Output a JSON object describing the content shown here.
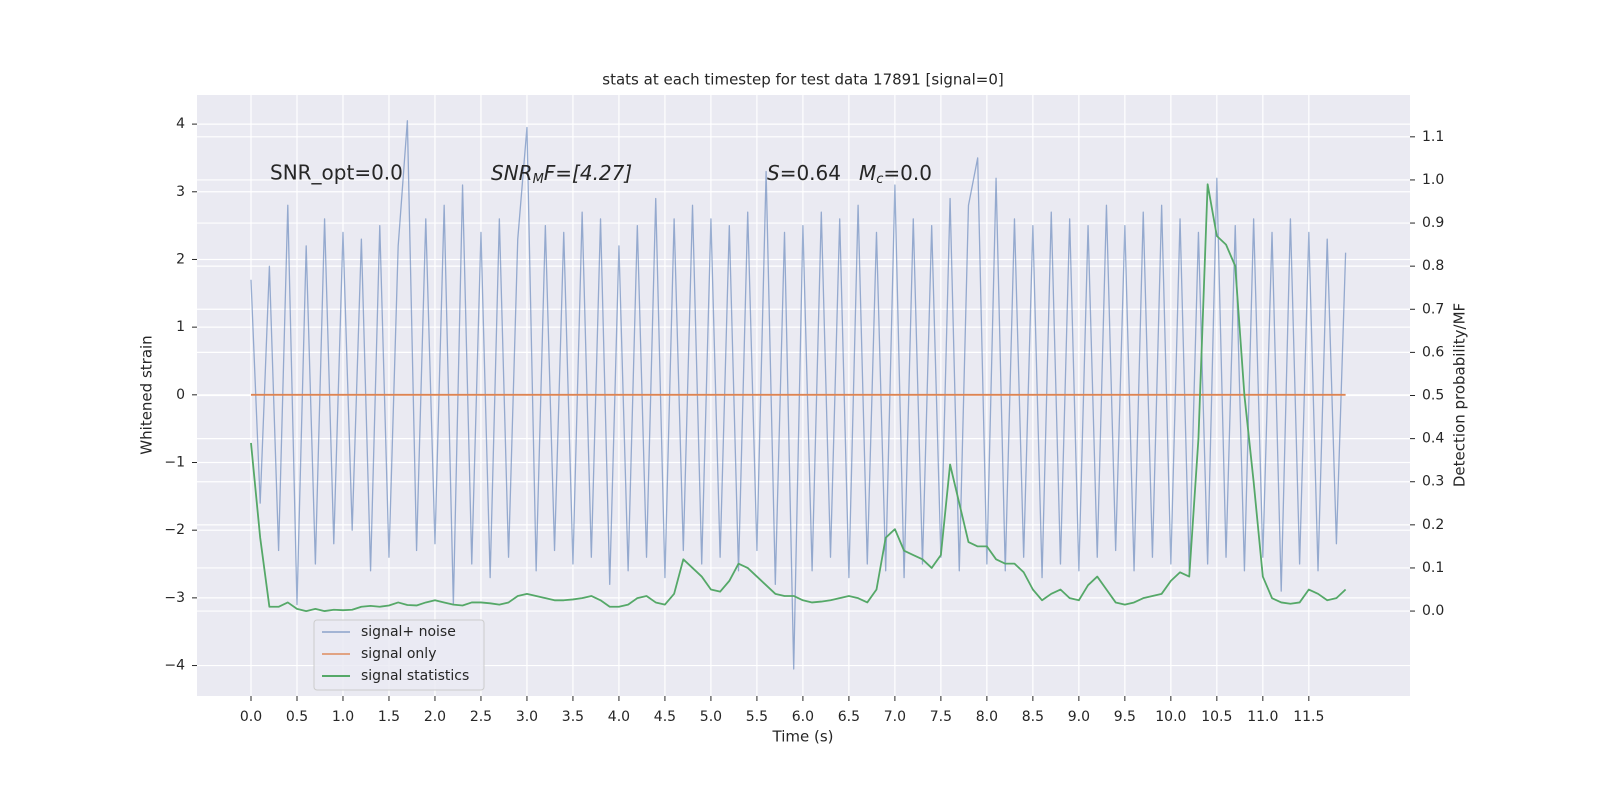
{
  "chart_data": {
    "type": "line",
    "title": "stats at each timestep for test data 17891 [signal=0]",
    "xlabel": "Time (s)",
    "ylabel": "Whitened strain",
    "y2label": "Detection probability/MF",
    "annotations": {
      "snr_opt": "SNR_opt=0.0",
      "snr_mf": [
        "SNR",
        "M",
        "F=[4.27]"
      ],
      "s": [
        "S",
        "=0.64"
      ],
      "mc": [
        "M",
        "c",
        "=0.0"
      ]
    },
    "x": [
      0,
      0.1,
      0.2,
      0.3,
      0.4,
      0.5,
      0.6,
      0.7,
      0.8,
      0.9,
      1,
      1.1,
      1.2,
      1.3,
      1.4,
      1.5,
      1.6,
      1.7,
      1.8,
      1.9,
      2,
      2.1,
      2.2,
      2.3,
      2.4,
      2.5,
      2.6,
      2.7,
      2.8,
      2.9,
      3,
      3.1,
      3.2,
      3.3,
      3.4,
      3.5,
      3.6,
      3.7,
      3.8,
      3.9,
      4,
      4.1,
      4.2,
      4.3,
      4.4,
      4.5,
      4.6,
      4.7,
      4.8,
      4.9,
      5,
      5.1,
      5.2,
      5.3,
      5.4,
      5.5,
      5.6,
      5.7,
      5.8,
      5.9,
      6,
      6.1,
      6.2,
      6.3,
      6.4,
      6.5,
      6.6,
      6.7,
      6.8,
      6.9,
      7,
      7.1,
      7.2,
      7.3,
      7.4,
      7.5,
      7.6,
      7.7,
      7.8,
      7.9,
      8,
      8.1,
      8.2,
      8.3,
      8.4,
      8.5,
      8.6,
      8.7,
      8.8,
      8.9,
      9,
      9.1,
      9.2,
      9.3,
      9.4,
      9.5,
      9.6,
      9.7,
      9.8,
      9.9,
      10,
      10.1,
      10.2,
      10.3,
      10.4,
      10.5,
      10.6,
      10.7,
      10.8,
      10.9,
      11,
      11.1,
      11.2,
      11.3,
      11.4,
      11.5,
      11.6,
      11.7,
      11.8,
      11.9
    ],
    "series": [
      {
        "name": "signal+ noise",
        "color": "#4c72b0",
        "values": [
          1.7,
          -1.6,
          1.9,
          -2.3,
          2.8,
          -3.1,
          2.2,
          -2.5,
          2.6,
          -2.2,
          2.4,
          -2.0,
          2.3,
          -2.6,
          2.5,
          -2.4,
          2.2,
          4.05,
          -2.3,
          2.6,
          -2.2,
          2.8,
          -3.1,
          3.1,
          -2.5,
          2.4,
          -2.7,
          2.6,
          -2.4,
          2.3,
          3.95,
          -2.6,
          2.5,
          -2.3,
          2.4,
          -2.5,
          2.7,
          -2.4,
          2.6,
          -2.8,
          2.2,
          -2.6,
          2.5,
          -2.4,
          2.9,
          -2.7,
          2.6,
          -2.3,
          2.8,
          -2.5,
          2.6,
          -2.4,
          2.5,
          -2.6,
          2.7,
          -2.3,
          3.3,
          -2.8,
          2.4,
          -4.05,
          2.5,
          -2.6,
          2.7,
          -2.4,
          2.6,
          -2.7,
          2.8,
          -2.5,
          2.4,
          -2.6,
          3.1,
          -2.7,
          2.6,
          -2.5,
          2.5,
          -2.4,
          2.9,
          -2.6,
          2.8,
          3.5,
          -2.5,
          3.2,
          -2.6,
          2.6,
          -2.4,
          2.5,
          -2.7,
          2.7,
          -2.5,
          2.6,
          -2.6,
          2.5,
          -2.4,
          2.8,
          -2.3,
          2.5,
          -2.6,
          2.7,
          -2.4,
          2.8,
          -2.5,
          2.6,
          -2.6,
          2.4,
          -2.5,
          3.2,
          -2.4,
          2.5,
          -2.6,
          2.6,
          -2.4,
          2.4,
          -2.9,
          2.6,
          -2.5,
          2.4,
          -2.6,
          2.3,
          -2.2,
          2.1
        ]
      },
      {
        "name": "signal only",
        "color": "#dd8452",
        "values": [
          0,
          0,
          0,
          0,
          0,
          0,
          0,
          0,
          0,
          0,
          0,
          0,
          0,
          0,
          0,
          0,
          0,
          0,
          0,
          0,
          0,
          0,
          0,
          0,
          0,
          0,
          0,
          0,
          0,
          0,
          0,
          0,
          0,
          0,
          0,
          0,
          0,
          0,
          0,
          0,
          0,
          0,
          0,
          0,
          0,
          0,
          0,
          0,
          0,
          0,
          0,
          0,
          0,
          0,
          0,
          0,
          0,
          0,
          0,
          0,
          0,
          0,
          0,
          0,
          0,
          0,
          0,
          0,
          0,
          0,
          0,
          0,
          0,
          0,
          0,
          0,
          0,
          0,
          0,
          0,
          0,
          0,
          0,
          0,
          0,
          0,
          0,
          0,
          0,
          0,
          0,
          0,
          0,
          0,
          0,
          0,
          0,
          0,
          0,
          0,
          0,
          0,
          0,
          0,
          0,
          0,
          0,
          0,
          0,
          0,
          0,
          0,
          0,
          0,
          0,
          0,
          0,
          0,
          0,
          0
        ]
      },
      {
        "name": "signal statistics",
        "color": "#55a868",
        "axis": "y2",
        "values": [
          0.39,
          0.17,
          0.01,
          0.01,
          0.02,
          0.005,
          0,
          0.005,
          0,
          0.003,
          0.002,
          0.003,
          0.01,
          0.012,
          0.01,
          0.013,
          0.02,
          0.014,
          0.013,
          0.02,
          0.025,
          0.02,
          0.015,
          0.013,
          0.02,
          0.02,
          0.018,
          0.015,
          0.02,
          0.035,
          0.04,
          0.035,
          0.03,
          0.025,
          0.025,
          0.027,
          0.03,
          0.035,
          0.025,
          0.01,
          0.01,
          0.015,
          0.03,
          0.035,
          0.02,
          0.015,
          0.04,
          0.12,
          0.1,
          0.08,
          0.05,
          0.045,
          0.07,
          0.11,
          0.1,
          0.08,
          0.06,
          0.04,
          0.035,
          0.035,
          0.025,
          0.02,
          0.022,
          0.025,
          0.03,
          0.035,
          0.03,
          0.02,
          0.05,
          0.17,
          0.19,
          0.14,
          0.13,
          0.12,
          0.1,
          0.13,
          0.34,
          0.25,
          0.16,
          0.15,
          0.15,
          0.12,
          0.11,
          0.11,
          0.09,
          0.05,
          0.025,
          0.04,
          0.05,
          0.03,
          0.025,
          0.06,
          0.08,
          0.05,
          0.02,
          0.015,
          0.02,
          0.03,
          0.035,
          0.04,
          0.07,
          0.09,
          0.08,
          0.4,
          0.99,
          0.87,
          0.85,
          0.8,
          0.5,
          0.3,
          0.08,
          0.03,
          0.02,
          0.017,
          0.02,
          0.05,
          0.04,
          0.025,
          0.03,
          0.05
        ]
      }
    ],
    "xlim": [
      -0.587,
      12.6
    ],
    "ylim": [
      -4.45,
      4.43
    ],
    "y2lim": [
      -0.197,
      1.197
    ],
    "xticks": [
      {
        "value": 0,
        "label": "0.0"
      },
      0.5,
      {
        "value": 1,
        "label": "1.0"
      },
      1.5,
      {
        "value": 2,
        "label": "2.0"
      },
      2.5,
      {
        "value": 3,
        "label": "3.0"
      },
      3.5,
      {
        "value": 4,
        "label": "4.0"
      },
      4.5,
      {
        "value": 5,
        "label": "5.0"
      },
      5.5,
      {
        "value": 6,
        "label": "6.0"
      },
      6.5,
      {
        "value": 7,
        "label": "7.0"
      },
      7.5,
      {
        "value": 8,
        "label": "8.0"
      },
      8.5,
      {
        "value": 9,
        "label": "9.0"
      },
      9.5,
      {
        "value": 10,
        "label": "10.0"
      },
      10.5,
      {
        "value": 11,
        "label": "11.0"
      },
      11.5
    ],
    "yticks": [
      {
        "value": -4,
        "label": "−4"
      },
      {
        "value": -3,
        "label": "−3"
      },
      {
        "value": -2,
        "label": "−2"
      },
      {
        "value": -1,
        "label": "−1"
      },
      0,
      1,
      2,
      3,
      4
    ],
    "y2ticks": [
      {
        "value": 0,
        "label": "0.0"
      },
      0.1,
      0.2,
      0.3,
      0.4,
      0.5,
      0.6,
      0.7,
      0.8,
      0.9,
      {
        "value": 1,
        "label": "1.0"
      },
      1.1
    ],
    "grid": true,
    "legend": "lower left"
  }
}
